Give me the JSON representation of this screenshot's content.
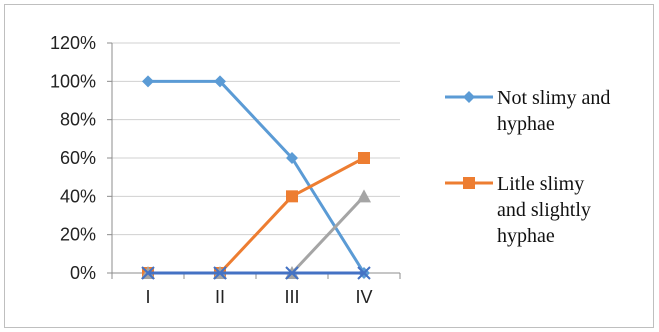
{
  "chart_data": {
    "type": "line",
    "categories": [
      "I",
      "II",
      "III",
      "IV"
    ],
    "ylim": [
      0,
      120
    ],
    "yticks": [
      "0%",
      "20%",
      "40%",
      "60%",
      "80%",
      "100%",
      "120%"
    ],
    "ytick_values": [
      0,
      20,
      40,
      60,
      80,
      100,
      120
    ],
    "grid": true,
    "legend_position": "right",
    "series": [
      {
        "name": "Not slimy and hyphae",
        "legend_lines": [
          "Not slimy and",
          "hyphae"
        ],
        "values": [
          100,
          100,
          60,
          0
        ],
        "color": "#5B9BD5",
        "marker": "diamond",
        "show_in_legend": true
      },
      {
        "name": "Litle slimy and slightly hyphae",
        "legend_lines": [
          "Litle slimy",
          "and slightly",
          "hyphae"
        ],
        "values": [
          0,
          0,
          40,
          60
        ],
        "color": "#ED7D31",
        "marker": "square",
        "show_in_legend": true
      },
      {
        "values": [
          0,
          0,
          0,
          40
        ],
        "color": "#A5A5A5",
        "marker": "triangle",
        "show_in_legend": false
      },
      {
        "values": [
          0,
          0,
          0,
          0
        ],
        "color": "#4472C4",
        "marker": "x",
        "show_in_legend": false
      }
    ]
  }
}
